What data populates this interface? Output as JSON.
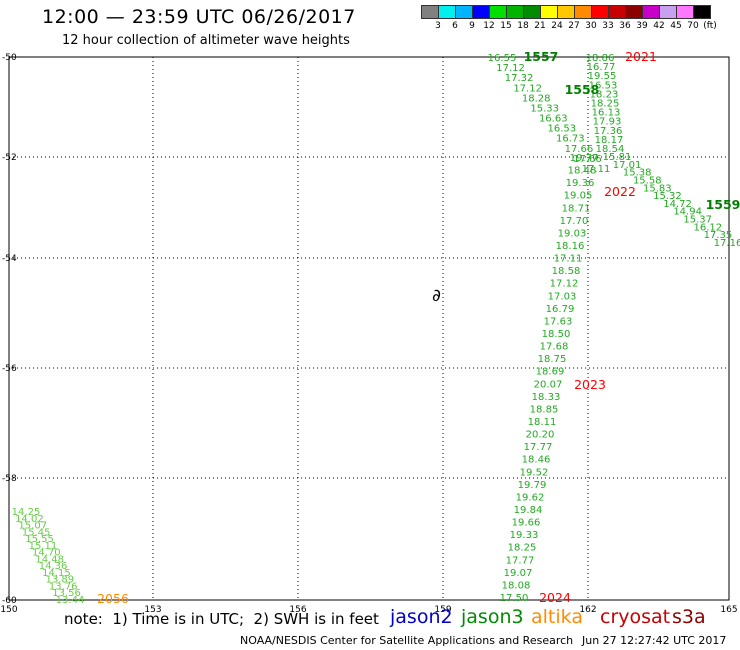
{
  "header": {
    "title": "12:00 — 23:59 UTC 06/26/2017",
    "subtitle": "12 hour collection of altimeter wave heights"
  },
  "colorbar": {
    "colors": [
      "#808080",
      "#00f0f0",
      "#00b4ff",
      "#0000ff",
      "#00e000",
      "#00b400",
      "#008c00",
      "#ffff00",
      "#ffc800",
      "#ff8c00",
      "#ff0000",
      "#c80000",
      "#8c0000",
      "#c800c8",
      "#c8a0f0",
      "#ff78ff",
      "#000000"
    ],
    "labels": [
      "3",
      "6",
      "9",
      "12",
      "15",
      "18",
      "21",
      "24",
      "27",
      "30",
      "33",
      "36",
      "39",
      "42",
      "45",
      "70",
      "(ft)"
    ]
  },
  "axes": {
    "y_labels": [
      "-50",
      "-52",
      "-54",
      "-56",
      "-58",
      "-60"
    ],
    "x_labels": [
      "150",
      "153",
      "156",
      "159",
      "162",
      "165"
    ]
  },
  "pass_labels": [
    {
      "text": "1557",
      "color": "#008000"
    },
    {
      "text": "2021",
      "color": "#ff0000"
    },
    {
      "text": "1558",
      "color": "#008000"
    },
    {
      "text": "2022",
      "color": "#ff0000"
    },
    {
      "text": "1559",
      "color": "#008000"
    },
    {
      "text": "2023",
      "color": "#ff0000"
    },
    {
      "text": "2024",
      "color": "#ff0000"
    },
    {
      "text": "2056",
      "color": "#ff8c00"
    }
  ],
  "tracks": {
    "track_1557": {
      "color": "#22aa22",
      "values": [
        "16.55",
        "17.12",
        "17.32",
        "17.12",
        "18.28",
        "15.33",
        "16.63",
        "16.53",
        "16.73",
        "17.66",
        "17.66",
        "17.11"
      ]
    },
    "track_2021": {
      "color": "#22aa22",
      "values": [
        "18.86",
        "16.77",
        "19.55",
        "16.53",
        "18.23",
        "18.25",
        "16.13",
        "17.93",
        "17.36",
        "18.17",
        "18.54"
      ]
    },
    "track_2022_east": {
      "color": "#22aa22",
      "values": [
        "15.81",
        "17.01",
        "15.38",
        "15.58",
        "15.83",
        "15.32",
        "14.72",
        "14.94",
        "15.37",
        "16.12",
        "17.35",
        "17.16"
      ]
    },
    "track_2022_south": {
      "color": "#22aa22",
      "values": [
        "19.77",
        "18.48",
        "19.36",
        "19.05",
        "18.71",
        "17.70",
        "19.03",
        "18.16",
        "17.11",
        "18.58",
        "17.12",
        "17.03",
        "16.79",
        "17.63",
        "18.50",
        "17.68",
        "18.75",
        "18.69",
        "20.07",
        "18.33",
        "18.85",
        "18.11",
        "20.20",
        "17.77",
        "18.46",
        "19.52",
        "19.79",
        "19.62",
        "19.84",
        "19.66",
        "19.33",
        "18.25",
        "17.77",
        "19.07",
        "18.08",
        "17.50"
      ]
    },
    "track_2056": {
      "color": "#66cc44",
      "values": [
        "14.25",
        "14.02",
        "15.07",
        "15.45",
        "15.55",
        "15.11",
        "14.70",
        "14.48",
        "14.36",
        "14.15",
        "13.89",
        "13.76",
        "13.56",
        "13.44"
      ]
    }
  },
  "land_mark": "∂",
  "note": "note:  1) Time is in UTC;  2) SWH is in feet",
  "legend": [
    {
      "name": "jason2",
      "color": "#0000cc"
    },
    {
      "name": "jason3",
      "color": "#008c00"
    },
    {
      "name": "altika",
      "color": "#ff8c00"
    },
    {
      "name": "cryosat",
      "color": "#c80000"
    },
    {
      "name": "s3a",
      "color": "#8c0000"
    }
  ],
  "footer": {
    "credit": "NOAA/NESDIS Center for Satellite Applications and Research",
    "timestamp": "Jun 27 12:27:42 UTC 2017"
  }
}
